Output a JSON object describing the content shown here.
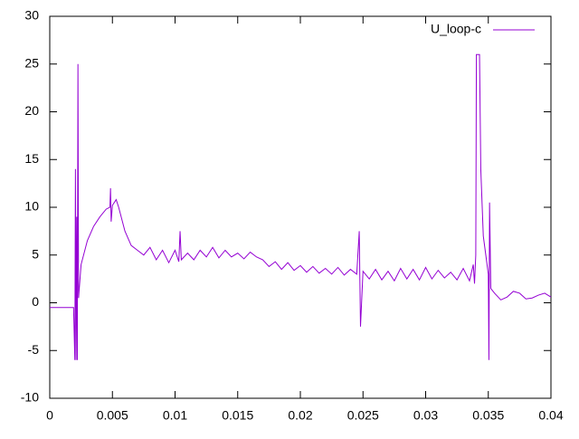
{
  "chart_data": {
    "type": "line",
    "x": [
      0,
      0.0019,
      0.002,
      0.00205,
      0.0021,
      0.00215,
      0.0022,
      0.00225,
      0.0023,
      0.0025,
      0.003,
      0.0035,
      0.004,
      0.0045,
      0.0048,
      0.00485,
      0.0049,
      0.005,
      0.0053,
      0.0055,
      0.006,
      0.0065,
      0.007,
      0.0075,
      0.008,
      0.0085,
      0.009,
      0.0095,
      0.01,
      0.0103,
      0.0104,
      0.0105,
      0.011,
      0.0115,
      0.012,
      0.0125,
      0.013,
      0.0135,
      0.014,
      0.0145,
      0.015,
      0.0155,
      0.016,
      0.0165,
      0.017,
      0.0175,
      0.018,
      0.0185,
      0.019,
      0.0195,
      0.02,
      0.0205,
      0.021,
      0.0215,
      0.022,
      0.0225,
      0.023,
      0.0235,
      0.024,
      0.0245,
      0.0247,
      0.0248,
      0.025,
      0.0255,
      0.026,
      0.0265,
      0.027,
      0.0275,
      0.028,
      0.0285,
      0.029,
      0.0295,
      0.03,
      0.0305,
      0.031,
      0.0315,
      0.032,
      0.0325,
      0.033,
      0.0335,
      0.0338,
      0.0339,
      0.034,
      0.03405,
      0.0343,
      0.0344,
      0.0346,
      0.0348,
      0.035,
      0.03505,
      0.0351,
      0.0352,
      0.0355,
      0.036,
      0.0365,
      0.037,
      0.0375,
      0.038,
      0.0385,
      0.039,
      0.0395,
      0.04
    ],
    "series": [
      {
        "name": "U_loop-c",
        "color": "#9400d3",
        "values": [
          -0.5,
          -0.5,
          -6,
          14,
          -6,
          9,
          -6,
          25,
          0.5,
          4,
          6.5,
          8,
          9,
          9.8,
          10,
          12,
          8.5,
          10.2,
          10.8,
          10,
          7.5,
          6,
          5.5,
          5,
          5.8,
          4.5,
          5.5,
          4.2,
          5.5,
          4.3,
          7.5,
          4.5,
          5.2,
          4.5,
          5.5,
          4.8,
          5.8,
          4.7,
          5.5,
          4.8,
          5.2,
          4.6,
          5.3,
          4.8,
          4.5,
          3.8,
          4.3,
          3.5,
          4.2,
          3.4,
          3.9,
          3.2,
          3.8,
          3.1,
          3.6,
          3.0,
          3.7,
          2.9,
          3.5,
          3.0,
          7.5,
          -2.5,
          3.3,
          2.5,
          3.5,
          2.4,
          3.3,
          2.3,
          3.6,
          2.5,
          3.5,
          2.4,
          3.7,
          2.5,
          3.4,
          2.6,
          3.2,
          2.4,
          3.6,
          2.3,
          4,
          2,
          5,
          26,
          26,
          14,
          7,
          5,
          3,
          -6,
          10.5,
          1.5,
          1,
          0.3,
          0.6,
          1.2,
          1,
          0.4,
          0.5,
          0.8,
          1,
          0.6
        ]
      }
    ],
    "xlim": [
      0,
      0.04
    ],
    "xticks": [
      0,
      0.005,
      0.01,
      0.015,
      0.02,
      0.025,
      0.03,
      0.035,
      0.04
    ],
    "ylim": [
      -10,
      30
    ],
    "yticks": [
      -10,
      -5,
      0,
      5,
      10,
      15,
      20,
      25,
      30
    ],
    "legend": "top-right"
  }
}
